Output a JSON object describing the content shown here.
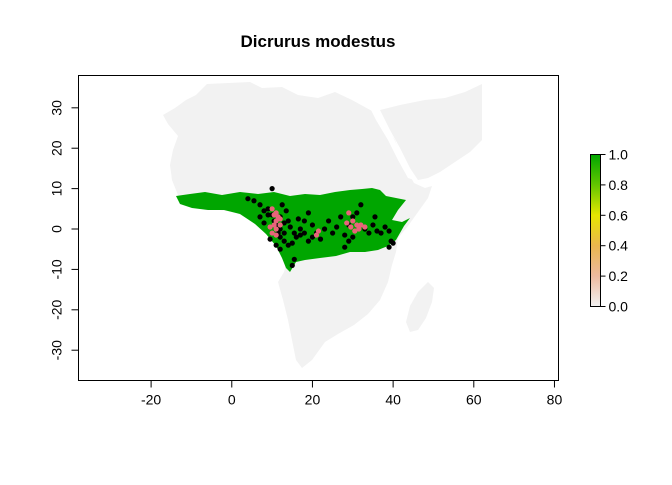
{
  "chart_data": {
    "type": "scatter",
    "title": "Dicrurus modestus",
    "xlabel": "",
    "ylabel": "",
    "xlim": [
      -38,
      81
    ],
    "ylim": [
      -37.5,
      38
    ],
    "x_ticks": [
      -20,
      0,
      20,
      40,
      60,
      80
    ],
    "y_ticks": [
      -30,
      -20,
      -10,
      0,
      10,
      20,
      30
    ],
    "colors": {
      "land": "#f2f2f2",
      "range": "#00a600",
      "points_black": "#000000",
      "points_pink": "#e8647a"
    },
    "legend": {
      "placement": "right",
      "ticks": [
        "0.0",
        "0.2",
        "0.4",
        "0.6",
        "0.8",
        "1.0"
      ],
      "stops": [
        "#f2f2f2",
        "#eeb99f",
        "#eab64e",
        "#e6e600",
        "#63c600",
        "#00a600"
      ]
    },
    "black_points": [
      [
        4,
        7.5
      ],
      [
        5.5,
        7
      ],
      [
        7,
        6
      ],
      [
        8,
        4.5
      ],
      [
        10,
        10
      ],
      [
        9,
        3.5
      ],
      [
        10.5,
        2
      ],
      [
        12,
        3
      ],
      [
        12.5,
        6
      ],
      [
        13.5,
        4.5
      ],
      [
        14,
        2
      ],
      [
        11,
        1
      ],
      [
        12,
        0
      ],
      [
        13,
        -1
      ],
      [
        14.5,
        0.5
      ],
      [
        15.5,
        -1
      ],
      [
        12,
        -2
      ],
      [
        13,
        -3
      ],
      [
        11,
        -4
      ],
      [
        12,
        -5
      ],
      [
        14,
        -4
      ],
      [
        15,
        -3.5
      ],
      [
        16,
        -2
      ],
      [
        17,
        -1.5
      ],
      [
        15.5,
        -7.5
      ],
      [
        15,
        -9
      ],
      [
        9.5,
        -2.5
      ],
      [
        8,
        1.5
      ],
      [
        7,
        3
      ],
      [
        9,
        5
      ],
      [
        18,
        2
      ],
      [
        19,
        4
      ],
      [
        20,
        1
      ],
      [
        21,
        -1
      ],
      [
        22,
        -2.5
      ],
      [
        23,
        0
      ],
      [
        24,
        2
      ],
      [
        25,
        -1
      ],
      [
        26,
        0.5
      ],
      [
        27,
        3
      ],
      [
        28,
        -1.5
      ],
      [
        28,
        -4.5
      ],
      [
        29,
        -3
      ],
      [
        30,
        -2
      ],
      [
        29,
        1
      ],
      [
        30,
        3
      ],
      [
        31,
        4
      ],
      [
        32,
        6
      ],
      [
        33,
        0
      ],
      [
        34,
        -1
      ],
      [
        35,
        1
      ],
      [
        35.5,
        3
      ],
      [
        36,
        -0.5
      ],
      [
        37,
        -1
      ],
      [
        38,
        0.5
      ],
      [
        39,
        -0.5
      ],
      [
        39.5,
        -3
      ],
      [
        40,
        -3.5
      ],
      [
        39,
        -4.5
      ],
      [
        19,
        -3
      ],
      [
        20,
        -2
      ],
      [
        18,
        -1
      ],
      [
        16.5,
        2.5
      ],
      [
        17,
        0
      ],
      [
        13,
        1.5
      ],
      [
        11.5,
        -1
      ],
      [
        10,
        3.5
      ]
    ],
    "pink_points": [
      [
        10,
        5
      ],
      [
        10.5,
        3.5
      ],
      [
        11,
        4
      ],
      [
        11.5,
        3
      ],
      [
        12,
        2.5
      ],
      [
        11,
        2
      ],
      [
        10.5,
        1
      ],
      [
        9.5,
        0.5
      ],
      [
        11,
        0
      ],
      [
        12,
        1
      ],
      [
        10,
        -1
      ],
      [
        11,
        -1.5
      ],
      [
        29,
        4
      ],
      [
        30,
        2
      ],
      [
        31,
        1
      ],
      [
        31.5,
        0
      ],
      [
        32,
        1
      ],
      [
        33,
        0.5
      ],
      [
        30.5,
        -0.5
      ],
      [
        29.5,
        0.5
      ],
      [
        28.5,
        1.5
      ],
      [
        21,
        -1.5
      ],
      [
        21.5,
        -0.5
      ]
    ]
  }
}
